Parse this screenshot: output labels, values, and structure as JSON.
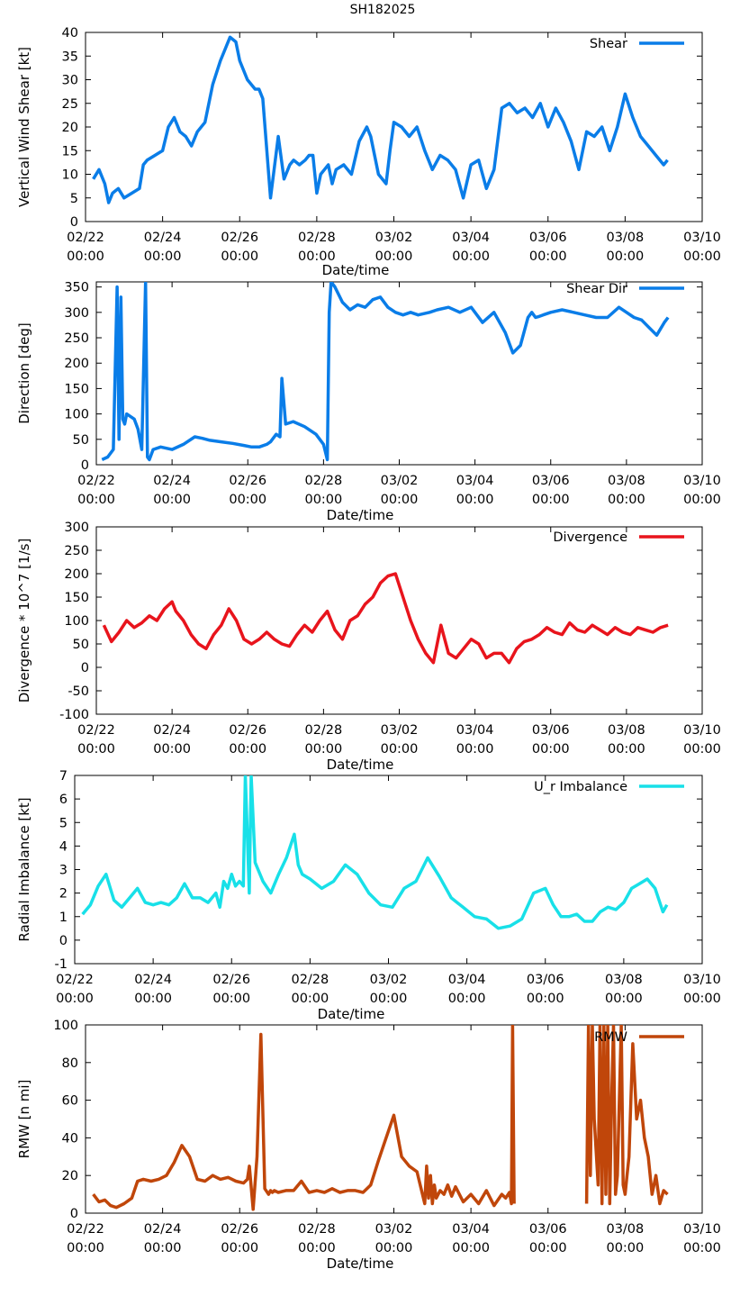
{
  "title": "SH182025",
  "x_ticks": [
    "02/22",
    "02/24",
    "02/26",
    "02/28",
    "03/02",
    "03/04",
    "03/06",
    "03/08",
    "03/10"
  ],
  "x_tick_time": "00:00",
  "chart_data": [
    {
      "type": "line",
      "id": "shear",
      "xlabel": "Date/time",
      "ylabel": "Vertical Wind Shear [kt]",
      "ylim": [
        0,
        40
      ],
      "yticks": [
        0,
        5,
        10,
        15,
        20,
        25,
        30,
        35,
        40
      ],
      "xlim_days": [
        0,
        16
      ],
      "legend": "Shear",
      "color": "#0a7de8",
      "x_days": [
        0.2,
        0.35,
        0.5,
        0.6,
        0.7,
        0.85,
        1.0,
        1.2,
        1.4,
        1.5,
        1.6,
        1.8,
        2.0,
        2.15,
        2.3,
        2.45,
        2.6,
        2.75,
        2.9,
        3.1,
        3.3,
        3.5,
        3.6,
        3.75,
        3.9,
        4.0,
        4.2,
        4.4,
        4.5,
        4.6,
        4.8,
        5.0,
        5.15,
        5.3,
        5.4,
        5.55,
        5.7,
        5.8,
        5.9,
        6.0,
        6.1,
        6.2,
        6.3,
        6.4,
        6.5,
        6.7,
        6.9,
        7.1,
        7.3,
        7.4,
        7.6,
        7.8,
        7.9,
        8.0,
        8.2,
        8.4,
        8.6,
        8.8,
        9.0,
        9.2,
        9.4,
        9.6,
        9.8,
        10.0,
        10.2,
        10.4,
        10.6,
        10.8,
        11.0,
        11.2,
        11.4,
        11.6,
        11.8,
        12.0,
        12.2,
        12.4,
        12.6,
        12.8,
        13.0,
        13.2,
        13.4,
        13.6,
        13.8,
        14.0,
        14.2,
        14.4,
        14.6,
        14.8,
        15.0,
        15.1
      ],
      "values": [
        9,
        11,
        8,
        4,
        6,
        7,
        5,
        6,
        7,
        12,
        13,
        14,
        15,
        20,
        22,
        19,
        18,
        16,
        19,
        21,
        29,
        34,
        36,
        39,
        38,
        34,
        30,
        28,
        28,
        26,
        5,
        18,
        9,
        12,
        13,
        12,
        13,
        14,
        14,
        6,
        10,
        11,
        12,
        8,
        11,
        12,
        10,
        17,
        20,
        18,
        10,
        8,
        15,
        21,
        20,
        18,
        20,
        15,
        11,
        14,
        13,
        11,
        5,
        12,
        13,
        7,
        11,
        24,
        25,
        23,
        24,
        22,
        25,
        20,
        24,
        21,
        17,
        11,
        19,
        18,
        20,
        15,
        20,
        27,
        22,
        18,
        16,
        14,
        12,
        13
      ]
    },
    {
      "type": "line",
      "id": "shear_dir",
      "xlabel": "Date/time",
      "ylabel": "Direction [deg]",
      "ylim": [
        0,
        360
      ],
      "yticks": [
        0,
        50,
        100,
        150,
        200,
        250,
        300,
        350
      ],
      "xlim_days": [
        0,
        16
      ],
      "legend": "Shear Dir",
      "color": "#0a7de8",
      "x_days": [
        0.15,
        0.3,
        0.45,
        0.55,
        0.6,
        0.65,
        0.7,
        0.75,
        0.8,
        0.9,
        1.0,
        1.1,
        1.2,
        1.3,
        1.35,
        1.4,
        1.5,
        1.7,
        2.0,
        2.3,
        2.6,
        2.8,
        3.0,
        3.3,
        3.6,
        3.9,
        4.1,
        4.3,
        4.5,
        4.6,
        4.75,
        4.85,
        4.9,
        5.0,
        5.2,
        5.5,
        5.8,
        6.0,
        6.1,
        6.15,
        6.2,
        6.3,
        6.5,
        6.7,
        6.9,
        7.1,
        7.3,
        7.5,
        7.7,
        7.9,
        8.1,
        8.3,
        8.5,
        8.8,
        9.0,
        9.3,
        9.6,
        9.9,
        10.2,
        10.5,
        10.8,
        11.0,
        11.2,
        11.4,
        11.5,
        11.6,
        11.7,
        11.8,
        12.0,
        12.3,
        12.6,
        12.9,
        13.2,
        13.5,
        13.8,
        14.0,
        14.2,
        14.4,
        14.6,
        14.8,
        15.0,
        15.1
      ],
      "values": [
        10,
        15,
        30,
        350,
        50,
        330,
        90,
        80,
        100,
        95,
        90,
        70,
        30,
        360,
        15,
        10,
        30,
        35,
        30,
        40,
        55,
        52,
        48,
        45,
        42,
        38,
        35,
        35,
        40,
        45,
        60,
        55,
        170,
        80,
        85,
        75,
        60,
        40,
        10,
        300,
        360,
        350,
        320,
        305,
        315,
        310,
        325,
        330,
        310,
        300,
        295,
        300,
        295,
        300,
        305,
        310,
        300,
        310,
        280,
        300,
        260,
        220,
        235,
        290,
        300,
        290,
        292,
        295,
        300,
        305,
        300,
        295,
        290,
        290,
        310,
        300,
        290,
        285,
        270,
        255,
        280,
        290
      ]
    },
    {
      "type": "line",
      "id": "divergence",
      "xlabel": "Date/time",
      "ylabel": "Divergence * 10^7 [1/s]",
      "ylim": [
        -100,
        300
      ],
      "yticks": [
        -100,
        -50,
        0,
        50,
        100,
        150,
        200,
        250,
        300
      ],
      "xlim_days": [
        0,
        16
      ],
      "legend": "Divergence",
      "color": "#e8141c",
      "x_days": [
        0.2,
        0.4,
        0.6,
        0.8,
        1.0,
        1.2,
        1.4,
        1.6,
        1.8,
        2.0,
        2.1,
        2.3,
        2.5,
        2.7,
        2.9,
        3.1,
        3.3,
        3.5,
        3.7,
        3.9,
        4.1,
        4.3,
        4.5,
        4.7,
        4.9,
        5.1,
        5.3,
        5.5,
        5.7,
        5.9,
        6.1,
        6.3,
        6.5,
        6.7,
        6.9,
        7.1,
        7.3,
        7.5,
        7.7,
        7.9,
        8.1,
        8.3,
        8.5,
        8.7,
        8.9,
        9.1,
        9.3,
        9.5,
        9.7,
        9.9,
        10.1,
        10.3,
        10.5,
        10.7,
        10.9,
        11.1,
        11.3,
        11.5,
        11.7,
        11.9,
        12.1,
        12.3,
        12.5,
        12.7,
        12.9,
        13.1,
        13.3,
        13.5,
        13.7,
        13.9,
        14.1,
        14.3,
        14.5,
        14.7,
        14.9,
        15.1
      ],
      "values": [
        90,
        55,
        75,
        100,
        85,
        95,
        110,
        100,
        125,
        140,
        120,
        100,
        70,
        50,
        40,
        70,
        90,
        125,
        100,
        60,
        50,
        60,
        75,
        60,
        50,
        45,
        70,
        90,
        75,
        100,
        120,
        80,
        60,
        100,
        110,
        135,
        150,
        180,
        195,
        200,
        150,
        100,
        60,
        30,
        10,
        90,
        30,
        20,
        40,
        60,
        50,
        20,
        30,
        30,
        10,
        40,
        55,
        60,
        70,
        85,
        75,
        70,
        95,
        80,
        75,
        90,
        80,
        70,
        85,
        75,
        70,
        85,
        80,
        75,
        85,
        90
      ]
    },
    {
      "type": "line",
      "id": "radial_imbalance",
      "xlabel": "Date/time",
      "ylabel": "Radial Imbalance [kt]",
      "ylim": [
        -1,
        7
      ],
      "yticks": [
        -1,
        0,
        1,
        2,
        3,
        4,
        5,
        6,
        7
      ],
      "xlim_days": [
        0,
        16
      ],
      "legend": "U_r Imbalance",
      "color": "#18e0e8",
      "x_days": [
        0.2,
        0.4,
        0.6,
        0.8,
        1.0,
        1.2,
        1.4,
        1.6,
        1.8,
        2.0,
        2.2,
        2.4,
        2.6,
        2.8,
        3.0,
        3.2,
        3.4,
        3.6,
        3.7,
        3.8,
        3.9,
        4.0,
        4.1,
        4.2,
        4.3,
        4.35,
        4.45,
        4.5,
        4.6,
        4.8,
        5.0,
        5.2,
        5.4,
        5.6,
        5.7,
        5.8,
        6.0,
        6.3,
        6.6,
        6.9,
        7.2,
        7.5,
        7.8,
        8.1,
        8.4,
        8.7,
        9.0,
        9.3,
        9.6,
        9.9,
        10.2,
        10.5,
        10.8,
        11.1,
        11.4,
        11.7,
        12.0,
        12.2,
        12.4,
        12.6,
        12.8,
        13.0,
        13.2,
        13.4,
        13.6,
        13.8,
        14.0,
        14.2,
        14.4,
        14.6,
        14.8,
        15.0,
        15.1
      ],
      "values": [
        1.1,
        1.5,
        2.3,
        2.8,
        1.7,
        1.4,
        1.8,
        2.2,
        1.6,
        1.5,
        1.6,
        1.5,
        1.8,
        2.4,
        1.8,
        1.8,
        1.6,
        2.0,
        1.4,
        2.5,
        2.2,
        2.8,
        2.3,
        2.5,
        2.3,
        7.0,
        2.0,
        7.0,
        3.3,
        2.5,
        2.0,
        2.8,
        3.5,
        4.5,
        3.2,
        2.8,
        2.6,
        2.2,
        2.5,
        3.2,
        2.8,
        2.0,
        1.5,
        1.4,
        2.2,
        2.5,
        3.5,
        2.7,
        1.8,
        1.4,
        1.0,
        0.9,
        0.5,
        0.6,
        0.9,
        2.0,
        2.2,
        1.5,
        1.0,
        1.0,
        1.1,
        0.8,
        0.8,
        1.2,
        1.4,
        1.3,
        1.6,
        2.2,
        2.4,
        2.6,
        2.2,
        1.2,
        1.5
      ]
    },
    {
      "type": "line",
      "id": "rmw",
      "xlabel": "Date/time",
      "ylabel": "RMW [n mi]",
      "ylim": [
        0,
        100
      ],
      "yticks": [
        0,
        20,
        40,
        60,
        80,
        100
      ],
      "xlim_days": [
        0,
        16
      ],
      "legend": "RMW",
      "color": "#c0460a",
      "segments": [
        {
          "x_days": [
            0.2,
            0.35,
            0.5,
            0.65,
            0.8,
            1.0,
            1.2,
            1.35,
            1.5,
            1.7,
            1.9,
            2.1,
            2.3,
            2.5,
            2.7,
            2.9,
            3.1,
            3.3,
            3.5,
            3.7,
            3.9,
            4.1,
            4.2,
            4.25,
            4.35,
            4.45,
            4.55,
            4.65,
            4.75,
            4.8,
            4.85,
            4.9,
            5.0,
            5.2,
            5.4,
            5.6,
            5.8,
            6.0,
            6.2,
            6.4,
            6.6,
            6.8,
            7.0,
            7.2,
            7.4,
            7.6,
            7.8,
            8.0,
            8.2,
            8.4,
            8.6,
            8.8,
            8.85,
            8.9,
            8.95,
            9.0,
            9.05,
            9.1,
            9.2,
            9.3,
            9.4,
            9.5,
            9.6,
            9.8,
            10.0,
            10.2,
            10.4,
            10.6,
            10.8,
            10.9,
            11.0,
            11.05,
            11.08,
            11.12
          ],
          "values": [
            10,
            6,
            7,
            4,
            3,
            5,
            8,
            17,
            18,
            17,
            18,
            20,
            27,
            36,
            30,
            18,
            17,
            20,
            18,
            19,
            17,
            16,
            18,
            25,
            2,
            30,
            95,
            13,
            10,
            12,
            11,
            12,
            11,
            12,
            12,
            17,
            11,
            12,
            11,
            13,
            11,
            12,
            12,
            11,
            15,
            28,
            40,
            52,
            30,
            25,
            22,
            5,
            25,
            8,
            20,
            5,
            15,
            8,
            12,
            10,
            15,
            9,
            14,
            6,
            10,
            5,
            12,
            4,
            10,
            8,
            11,
            5,
            100,
            5
          ]
        },
        {
          "x_days": [
            13.0,
            13.05,
            13.1,
            13.15,
            13.2,
            13.3,
            13.35,
            13.4,
            13.45,
            13.5,
            13.55,
            13.6,
            13.65,
            13.7,
            13.75,
            13.8,
            13.9,
            13.95,
            14.0,
            14.05,
            14.1,
            14.2,
            14.3,
            14.4,
            14.5,
            14.6,
            14.7,
            14.8,
            14.9,
            15.0,
            15.1
          ],
          "values": [
            5,
            100,
            20,
            100,
            50,
            15,
            100,
            5,
            100,
            10,
            100,
            5,
            60,
            100,
            10,
            20,
            100,
            15,
            10,
            20,
            30,
            90,
            50,
            60,
            40,
            30,
            10,
            20,
            5,
            12,
            10
          ]
        }
      ]
    }
  ]
}
